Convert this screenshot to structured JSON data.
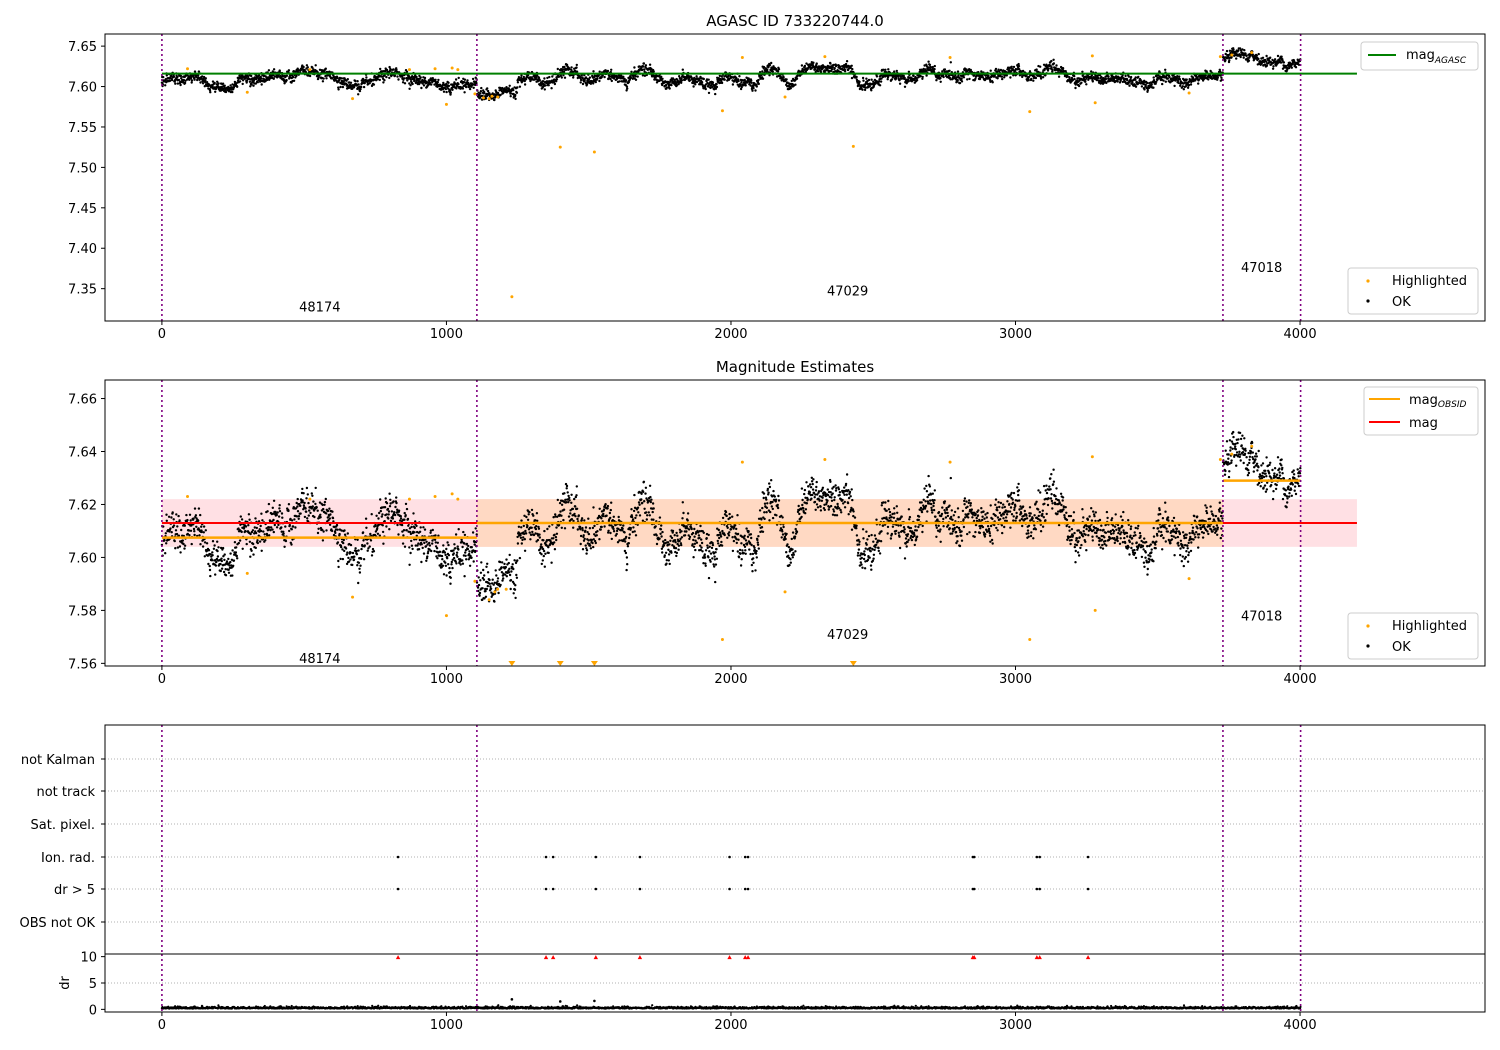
{
  "x_ticks": [
    "0",
    "1000",
    "2000",
    "3000",
    "4000"
  ],
  "x_tick_values": [
    0,
    1000,
    2000,
    3000,
    4000
  ],
  "obsid_boundaries": [
    0,
    1107,
    3729,
    4002
  ],
  "colors": {
    "ok": "#000000",
    "highlighted": "#ffa500",
    "agasc_line": "#008000",
    "mag_line": "#ff0000",
    "obsid_line": "#ffa500",
    "boundary": "#800080",
    "band_red": "#ffe0e4",
    "band_orange": "#ffd9c3"
  },
  "chart_data": [
    {
      "type": "scatter",
      "title": "AGASC ID 733220744.0",
      "xlim": [
        -200,
        4650
      ],
      "ylim": [
        7.31,
        7.665
      ],
      "yticks": [
        "7.65",
        "7.60",
        "7.55",
        "7.50",
        "7.45",
        "7.40",
        "7.35"
      ],
      "ytick_values": [
        7.65,
        7.6,
        7.55,
        7.5,
        7.45,
        7.4,
        7.35
      ],
      "mag_agasc": 7.616,
      "mag_agasc_range": [
        0,
        4200
      ],
      "obsid_labels": [
        {
          "text": "48174",
          "x": 555,
          "y": 7.328
        },
        {
          "text": "47029",
          "x": 2410,
          "y": 7.348
        },
        {
          "text": "47018",
          "x": 3865,
          "y": 7.377
        }
      ],
      "legend_top": {
        "label": "mag",
        "sub": "AGASC"
      },
      "legend_bottom": [
        {
          "label": "Highlighted"
        },
        {
          "label": "OK"
        }
      ],
      "highlighted": [
        [
          90,
          7.622
        ],
        [
          300,
          7.593
        ],
        [
          520,
          7.621
        ],
        [
          670,
          7.585
        ],
        [
          870,
          7.621
        ],
        [
          960,
          7.622
        ],
        [
          1000,
          7.578
        ],
        [
          1020,
          7.623
        ],
        [
          1040,
          7.621
        ],
        [
          1100,
          7.591
        ],
        [
          1130,
          7.586
        ],
        [
          1150,
          7.585
        ],
        [
          1160,
          7.588
        ],
        [
          1180,
          7.587
        ],
        [
          1230,
          7.34
        ],
        [
          1400,
          7.525
        ],
        [
          1520,
          7.519
        ],
        [
          1970,
          7.57
        ],
        [
          2040,
          7.636
        ],
        [
          2190,
          7.587
        ],
        [
          2330,
          7.637
        ],
        [
          2430,
          7.526
        ],
        [
          2770,
          7.636
        ],
        [
          3050,
          7.569
        ],
        [
          3270,
          7.638
        ],
        [
          3280,
          7.58
        ],
        [
          3610,
          7.592
        ],
        [
          3720,
          7.637
        ],
        [
          3760,
          7.639
        ],
        [
          3830,
          7.642
        ]
      ]
    },
    {
      "type": "scatter",
      "title": "Magnitude Estimates",
      "xlim": [
        -200,
        4650
      ],
      "ylim": [
        7.559,
        7.667
      ],
      "yticks": [
        "7.66",
        "7.64",
        "7.62",
        "7.60",
        "7.58",
        "7.56"
      ],
      "ytick_values": [
        7.66,
        7.64,
        7.62,
        7.6,
        7.58,
        7.56
      ],
      "mag": 7.613,
      "mag_band": [
        7.604,
        7.622
      ],
      "mag_range": [
        0,
        4200
      ],
      "orange_band_range": [
        1107,
        3729
      ],
      "mag_obsid": [
        {
          "x": [
            0,
            1107
          ],
          "value": 7.6075
        },
        {
          "x": [
            1107,
            3729
          ],
          "value": 7.613
        },
        {
          "x": [
            3729,
            4002
          ],
          "value": 7.629
        }
      ],
      "obsid_labels": [
        {
          "text": "48174",
          "x": 555,
          "y": 7.562
        },
        {
          "text": "47029",
          "x": 2410,
          "y": 7.571
        },
        {
          "text": "47018",
          "x": 3865,
          "y": 7.578
        }
      ],
      "legend_top": [
        {
          "label": "mag",
          "sub": "OBSID"
        },
        {
          "label": "mag"
        }
      ],
      "legend_bottom": [
        {
          "label": "Highlighted"
        },
        {
          "label": "OK"
        }
      ],
      "highlighted": [
        [
          90,
          7.623
        ],
        [
          300,
          7.594
        ],
        [
          520,
          7.622
        ],
        [
          670,
          7.585
        ],
        [
          870,
          7.622
        ],
        [
          960,
          7.623
        ],
        [
          1000,
          7.578
        ],
        [
          1020,
          7.624
        ],
        [
          1040,
          7.622
        ],
        [
          1100,
          7.591
        ],
        [
          1150,
          7.584
        ],
        [
          1170,
          7.587
        ],
        [
          1180,
          7.588
        ],
        [
          1210,
          7.588
        ],
        [
          1970,
          7.569
        ],
        [
          2040,
          7.636
        ],
        [
          2190,
          7.587
        ],
        [
          2330,
          7.637
        ],
        [
          2770,
          7.636
        ],
        [
          3050,
          7.569
        ],
        [
          3270,
          7.638
        ],
        [
          3280,
          7.58
        ],
        [
          3610,
          7.592
        ],
        [
          3720,
          7.637
        ],
        [
          3760,
          7.639
        ],
        [
          3830,
          7.642
        ]
      ],
      "clipped_markers": [
        1230,
        1400,
        1520,
        2430
      ]
    },
    {
      "type": "scatter",
      "title": "",
      "xlim": [
        -200,
        4650
      ],
      "flag_labels": [
        "not Kalman",
        "not track",
        "Sat. pixel.",
        "Ion. rad.",
        "dr > 5",
        "OBS not OK"
      ],
      "flag_points": [
        830,
        1350,
        1375,
        1525,
        1680,
        1995,
        2050,
        2060,
        2850,
        2855,
        3075,
        3085,
        3255
      ],
      "flag_rows_marked": [
        "Ion. rad.",
        "dr > 5"
      ],
      "dr_ylabel": "dr",
      "dr_yticks": [
        "10",
        "5",
        "0"
      ],
      "dr_ytick_values": [
        10,
        5,
        0
      ],
      "dr_ylim": [
        -0.5,
        10.5
      ],
      "dr_red_markers": [
        830,
        1350,
        1375,
        1525,
        1680,
        1995,
        2050,
        2060,
        2850,
        2855,
        3075,
        3085,
        3255
      ],
      "dr_outliers": [
        [
          1230,
          1.9
        ],
        [
          1400,
          1.5
        ],
        [
          1520,
          1.6
        ]
      ]
    }
  ]
}
